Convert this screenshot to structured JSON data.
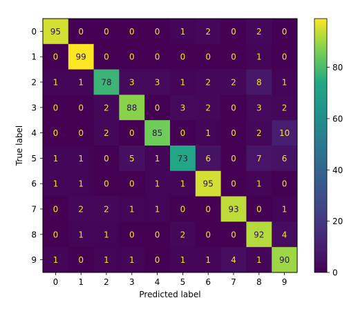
{
  "chart_data": {
    "type": "heatmap",
    "xlabel": "Predicted label",
    "ylabel": "True label",
    "x_categories": [
      "0",
      "1",
      "2",
      "3",
      "4",
      "5",
      "6",
      "7",
      "8",
      "9"
    ],
    "y_categories": [
      "0",
      "1",
      "2",
      "3",
      "4",
      "5",
      "6",
      "7",
      "8",
      "9"
    ],
    "values": [
      [
        95,
        0,
        0,
        0,
        0,
        1,
        2,
        0,
        2,
        0
      ],
      [
        0,
        99,
        0,
        0,
        0,
        0,
        0,
        0,
        1,
        0
      ],
      [
        1,
        1,
        78,
        3,
        3,
        1,
        2,
        2,
        8,
        1
      ],
      [
        0,
        0,
        2,
        88,
        0,
        3,
        2,
        0,
        3,
        2
      ],
      [
        0,
        0,
        2,
        0,
        85,
        0,
        1,
        0,
        2,
        10
      ],
      [
        1,
        1,
        0,
        5,
        1,
        73,
        6,
        0,
        7,
        6
      ],
      [
        1,
        1,
        0,
        0,
        1,
        1,
        95,
        0,
        1,
        0
      ],
      [
        0,
        2,
        2,
        1,
        1,
        0,
        0,
        93,
        0,
        1
      ],
      [
        0,
        1,
        1,
        0,
        0,
        2,
        0,
        0,
        92,
        4
      ],
      [
        1,
        0,
        1,
        1,
        0,
        1,
        1,
        4,
        1,
        90
      ]
    ],
    "colormap": "viridis",
    "color_range": [
      0,
      99
    ],
    "colorbar": {
      "ticks": [
        0,
        20,
        40,
        60,
        80
      ],
      "tick_labels": [
        "0",
        "20",
        "40",
        "60",
        "80"
      ]
    },
    "text_colors": {
      "dark_cell": "#f5e61c",
      "light_cell": "#2d0f4a"
    },
    "grid": false,
    "legend": "none"
  }
}
